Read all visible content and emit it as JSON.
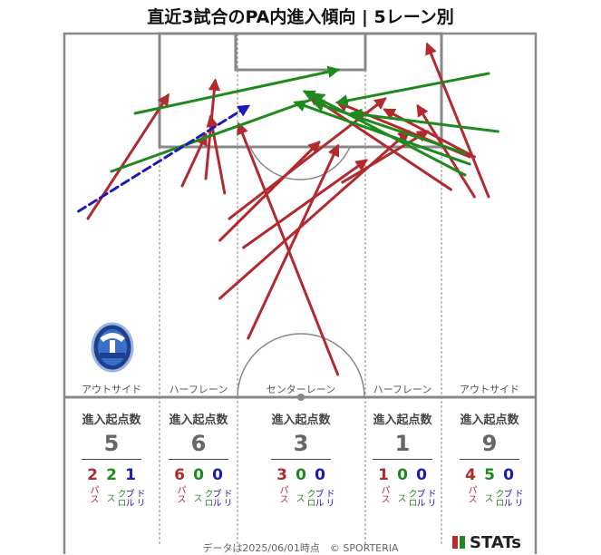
{
  "title": "直近3試合のPA内進入傾向 | 5レーン別",
  "colors": {
    "pass": "#b22a2e",
    "cross": "#1e8a1e",
    "dribble": "#1a1ab4",
    "line": "#888888"
  },
  "lanes": [
    {
      "name": "アウトサイド",
      "header": "進入起点数",
      "total": "5",
      "pass": "2",
      "cross": "2",
      "dribble": "1"
    },
    {
      "name": "ハーフレーン",
      "header": "進入起点数",
      "total": "6",
      "pass": "6",
      "cross": "0",
      "dribble": "0"
    },
    {
      "name": "センターレーン",
      "header": "進入起点数",
      "total": "3",
      "pass": "3",
      "cross": "0",
      "dribble": "0"
    },
    {
      "name": "ハーフレーン",
      "header": "進入起点数",
      "total": "1",
      "pass": "1",
      "cross": "0",
      "dribble": "0"
    },
    {
      "name": "アウトサイド",
      "header": "進入起点数",
      "total": "9",
      "pass": "4",
      "cross": "5",
      "dribble": "0"
    }
  ],
  "labels": {
    "pass": "パス",
    "cross": "クロス",
    "dribble": "ドリブル"
  },
  "footer": "データは2025/06/01時点　© SPORTERIA",
  "brand": "STATs",
  "chart_data": {
    "type": "scatter",
    "note_units": "pitch coordinates: x 0-100 across width (left to right), y 0-100 from goal line downward",
    "arrows": [
      {
        "kind": "pass",
        "from": [
          5,
          51
        ],
        "to": [
          22,
          17
        ]
      },
      {
        "kind": "pass",
        "from": [
          25,
          42
        ],
        "to": [
          30,
          28
        ]
      },
      {
        "kind": "pass",
        "from": [
          30,
          40
        ],
        "to": [
          32,
          13
        ]
      },
      {
        "kind": "pass",
        "from": [
          34,
          44
        ],
        "to": [
          31,
          23
        ]
      },
      {
        "kind": "pass",
        "from": [
          33,
          57
        ],
        "to": [
          54,
          30
        ]
      },
      {
        "kind": "pass",
        "from": [
          38,
          59
        ],
        "to": [
          64,
          35
        ]
      },
      {
        "kind": "pass",
        "from": [
          35,
          51
        ],
        "to": [
          68,
          18
        ]
      },
      {
        "kind": "pass",
        "from": [
          33,
          73
        ],
        "to": [
          73,
          27
        ]
      },
      {
        "kind": "pass",
        "from": [
          39,
          84
        ],
        "to": [
          58,
          31
        ]
      },
      {
        "kind": "pass",
        "from": [
          58,
          94
        ],
        "to": [
          37,
          25
        ]
      },
      {
        "kind": "pass",
        "from": [
          59,
          41
        ],
        "to": [
          77,
          27
        ]
      },
      {
        "kind": "pass",
        "from": [
          82,
          43
        ],
        "to": [
          52,
          17
        ]
      },
      {
        "kind": "pass",
        "from": [
          90,
          45
        ],
        "to": [
          77,
          3
        ]
      },
      {
        "kind": "pass",
        "from": [
          87,
          45
        ],
        "to": [
          75,
          20
        ]
      },
      {
        "kind": "pass",
        "from": [
          86,
          34
        ],
        "to": [
          58,
          19
        ]
      },
      {
        "kind": "pass",
        "from": [
          87,
          34
        ],
        "to": [
          68,
          21
        ]
      },
      {
        "kind": "cross",
        "from": [
          10,
          38
        ],
        "to": [
          55,
          17
        ]
      },
      {
        "kind": "cross",
        "from": [
          15,
          22
        ],
        "to": [
          58,
          10
        ]
      },
      {
        "kind": "cross",
        "from": [
          92,
          27
        ],
        "to": [
          61,
          22
        ]
      },
      {
        "kind": "cross",
        "from": [
          86,
          36
        ],
        "to": [
          49,
          19
        ]
      },
      {
        "kind": "cross",
        "from": [
          85,
          39
        ],
        "to": [
          51,
          16
        ]
      },
      {
        "kind": "cross",
        "from": [
          90,
          11
        ],
        "to": [
          58,
          19
        ]
      },
      {
        "kind": "cross",
        "from": [
          85,
          33
        ],
        "to": [
          53,
          19
        ]
      },
      {
        "kind": "dribble",
        "from": [
          3,
          49
        ],
        "to": [
          39,
          20
        ]
      }
    ]
  }
}
